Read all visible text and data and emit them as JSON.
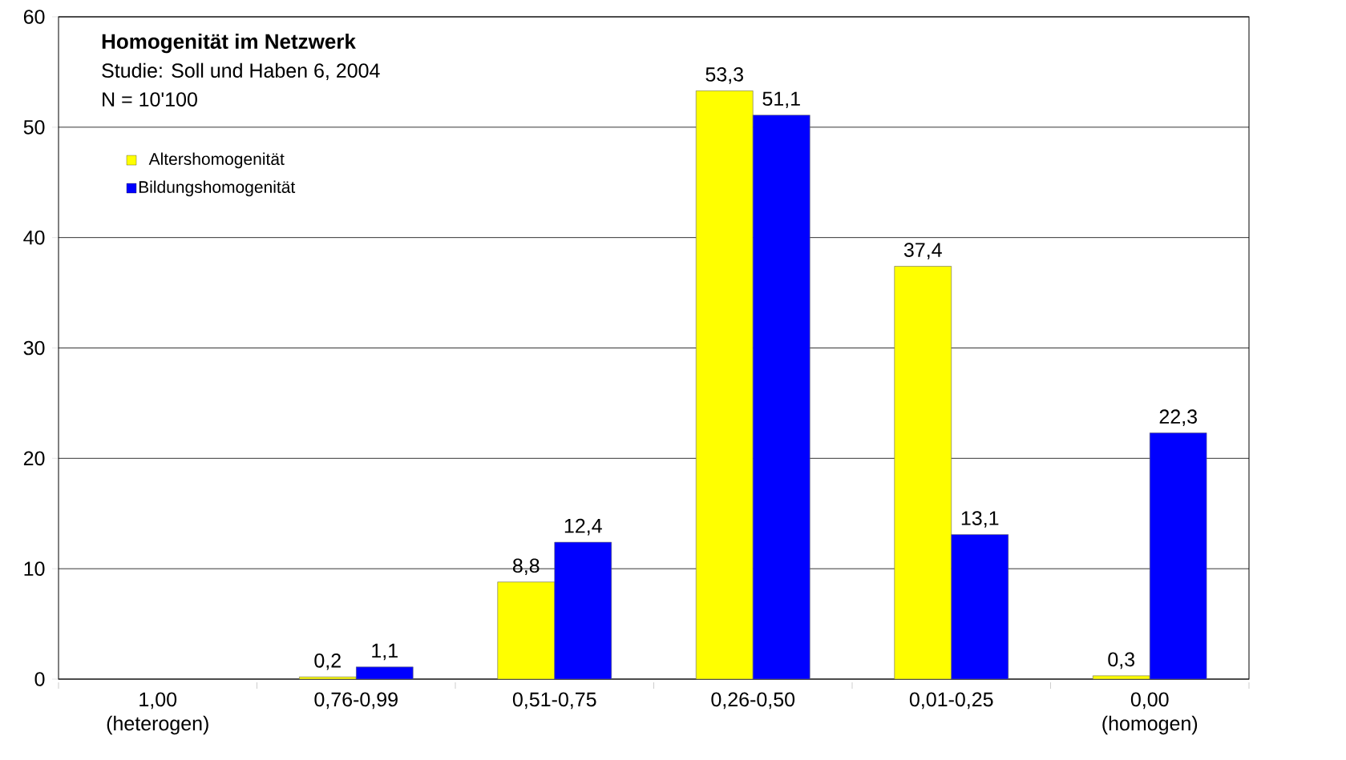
{
  "chart_data": {
    "type": "bar",
    "title": "Homogenität im Netzwerk",
    "subtitle": "Studie: Soll und Haben 6, 2004",
    "annotations": [
      "N = 10'100"
    ],
    "categories": [
      "1,00 (heterogen)",
      "0,76-0,99",
      "0,51-0,75",
      "0,26-0,50",
      "0,01-0,25",
      "0,00 (homogen)"
    ],
    "series": [
      {
        "name": "Altershomogenität",
        "color": "#ffff00",
        "values": [
          null,
          0.2,
          8.8,
          53.3,
          37.4,
          0.3
        ],
        "value_labels": [
          null,
          "0,2",
          "8,8",
          "53,3",
          "37,4",
          "0,3"
        ]
      },
      {
        "name": "Bildungshomogenität",
        "color": "#0000ff",
        "values": [
          null,
          1.1,
          12.4,
          51.1,
          13.1,
          22.3
        ],
        "value_labels": [
          null,
          "1,1",
          "12,4",
          "51,1",
          "13,1",
          "22,3"
        ]
      }
    ],
    "ylim": [
      0,
      60
    ],
    "yticks": [
      0,
      10,
      20,
      30,
      40,
      50,
      60
    ],
    "grid": "y",
    "legend": "top left"
  }
}
